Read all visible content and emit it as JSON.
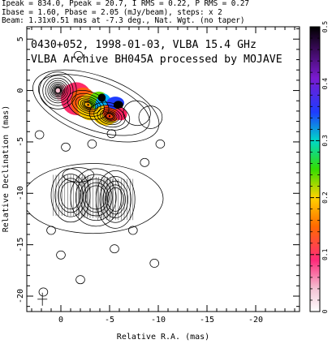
{
  "header": {
    "line1": "Ipeak = 834.0, Ppeak = 20.7, I RMS = 0.22, P RMS = 0.27",
    "line2": "Ibase = 1.60, Pbase = 2.05 (mJy/beam), steps: x 2",
    "line3": "Beam: 1.31x0.51 mas at -7.3 deg., Nat. Wgt. (no taper)"
  },
  "chart_data": {
    "type": "contour",
    "title": "0430+052, 1998-01-03, VLBA 15.4 GHz",
    "subtitle": "VLBA Archive BH045A processed by MOJAVE",
    "xlabel": "Relative R.A. (mas)",
    "ylabel": "Relative Declination (mas)",
    "xlim": [
      3.5,
      -24.5
    ],
    "ylim": [
      -21.5,
      6.2
    ],
    "x_ticks": [
      0,
      -5,
      -10,
      -15,
      -20
    ],
    "y_ticks": [
      5,
      0,
      -5,
      -10,
      -15,
      -20
    ],
    "colorbar": {
      "range": [
        0,
        0.5
      ],
      "ticks": [
        0,
        0.1,
        0.2,
        0.3,
        0.4,
        0.5
      ]
    },
    "components": [
      {
        "x": 0.0,
        "y": 0.0
      },
      {
        "x": -2.8,
        "y": -1.4
      },
      {
        "x": -5.0,
        "y": -2.5
      }
    ]
  }
}
